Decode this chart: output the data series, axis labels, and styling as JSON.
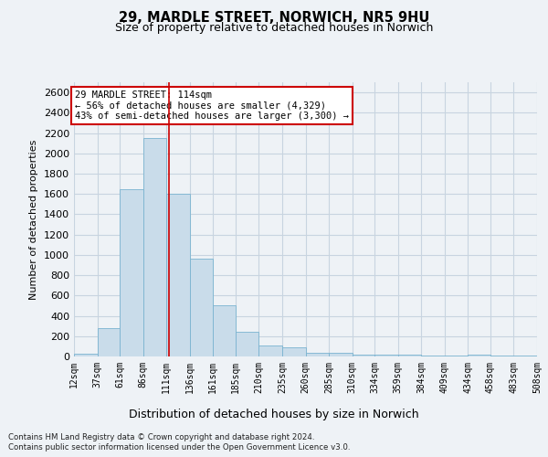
{
  "title_line1": "29, MARDLE STREET, NORWICH, NR5 9HU",
  "title_line2": "Size of property relative to detached houses in Norwich",
  "xlabel": "Distribution of detached houses by size in Norwich",
  "ylabel": "Number of detached properties",
  "annotation_line1": "29 MARDLE STREET: 114sqm",
  "annotation_line2": "← 56% of detached houses are smaller (4,329)",
  "annotation_line3": "43% of semi-detached houses are larger (3,300) →",
  "property_size_sqm": 114,
  "bin_edges": [
    12,
    37,
    61,
    86,
    111,
    136,
    161,
    185,
    210,
    235,
    260,
    285,
    310,
    334,
    359,
    384,
    409,
    434,
    458,
    483,
    508
  ],
  "bar_heights": [
    25,
    280,
    1650,
    2150,
    1600,
    960,
    500,
    245,
    110,
    90,
    40,
    40,
    20,
    20,
    20,
    10,
    5,
    20,
    5,
    10
  ],
  "bar_color": "#c9dcea",
  "bar_edge_color": "#7ab3d0",
  "grid_color": "#c8d4e0",
  "vline_color": "#cc0000",
  "vline_x": 114,
  "ylim": [
    0,
    2700
  ],
  "yticks": [
    0,
    200,
    400,
    600,
    800,
    1000,
    1200,
    1400,
    1600,
    1800,
    2000,
    2200,
    2400,
    2600
  ],
  "footer_line1": "Contains HM Land Registry data © Crown copyright and database right 2024.",
  "footer_line2": "Contains public sector information licensed under the Open Government Licence v3.0.",
  "bg_color": "#eef2f6"
}
